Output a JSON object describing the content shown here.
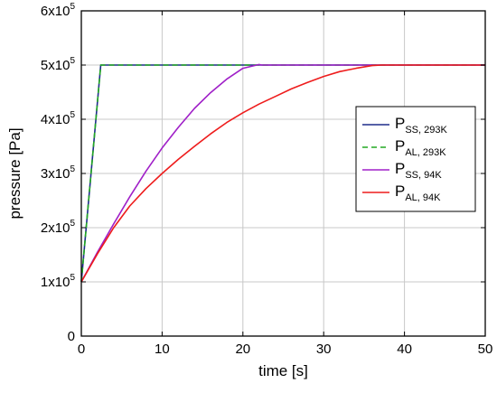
{
  "chart_data": {
    "type": "line",
    "xlabel": "time [s]",
    "ylabel": "pressure [Pa]",
    "xlim": [
      0,
      50
    ],
    "ylim": [
      0,
      600000
    ],
    "xticks": [
      0,
      10,
      20,
      30,
      40,
      50
    ],
    "xtick_labels": [
      "0",
      "10",
      "20",
      "30",
      "40",
      "50"
    ],
    "yticks": [
      0,
      100000,
      200000,
      300000,
      400000,
      500000,
      600000
    ],
    "ytick_labels": [
      {
        "mantissa": "0",
        "exp": ""
      },
      {
        "mantissa": "1x10",
        "exp": "5"
      },
      {
        "mantissa": "2x10",
        "exp": "5"
      },
      {
        "mantissa": "3x10",
        "exp": "5"
      },
      {
        "mantissa": "4x10",
        "exp": "5"
      },
      {
        "mantissa": "5x10",
        "exp": "5"
      },
      {
        "mantissa": "6x10",
        "exp": "5"
      }
    ],
    "grid": true,
    "legend_position": "right",
    "series": [
      {
        "name": "P_SS, 293K",
        "label_main": "P",
        "label_sub": "SS, 293K",
        "color": "#1f2d8a",
        "dash": "solid",
        "x": [
          0,
          2.4,
          50
        ],
        "y": [
          100000,
          500000,
          500000
        ]
      },
      {
        "name": "P_AL, 293K",
        "label_main": "P",
        "label_sub": "AL, 293K",
        "color": "#22a822",
        "dash": "dashed",
        "x": [
          0,
          2.4,
          50
        ],
        "y": [
          100000,
          500000,
          500000
        ]
      },
      {
        "name": "P_SS, 94K",
        "label_main": "P",
        "label_sub": "SS, 94K",
        "color": "#a020c8",
        "dash": "solid",
        "x": [
          0,
          2,
          4,
          6,
          8,
          10,
          12,
          14,
          16,
          18,
          20,
          22,
          22.3,
          50
        ],
        "y": [
          100000,
          155000,
          207000,
          257000,
          304000,
          347000,
          385000,
          420000,
          449000,
          474000,
          494000,
          501000,
          500000,
          500000
        ]
      },
      {
        "name": "P_AL, 94K",
        "label_main": "P",
        "label_sub": "AL, 94K",
        "color": "#ee1c1c",
        "dash": "solid",
        "x": [
          0,
          2,
          4,
          6,
          8,
          10,
          12,
          14,
          16,
          18,
          20,
          22,
          24,
          26,
          28,
          30,
          32,
          34,
          36,
          37.2,
          50
        ],
        "y": [
          100000,
          152000,
          200000,
          240000,
          272000,
          300000,
          326000,
          350000,
          373000,
          394000,
          412000,
          428000,
          442000,
          456000,
          468000,
          479000,
          488000,
          494000,
          499000,
          500000,
          500000
        ]
      }
    ]
  }
}
